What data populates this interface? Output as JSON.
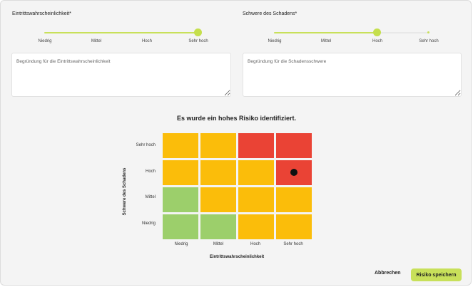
{
  "likelihood": {
    "label": "Eintrittswahrscheinlichkeit*",
    "ticks": [
      "Niedrig",
      "Mittel",
      "Hoch",
      "Sehr hoch"
    ],
    "selected_index": 3,
    "reason_placeholder": "Begründung für die Eintrittswahrscheinlichkeit"
  },
  "severity": {
    "label": "Schwere des Schadens*",
    "ticks": [
      "Niedrig",
      "Mittel",
      "Hoch",
      "Sehr hoch"
    ],
    "selected_index": 2,
    "reason_placeholder": "Begründung für die Schadensschwere"
  },
  "matrix": {
    "result_text": "Es wurde ein hohes Risiko identifiziert.",
    "x_title": "Eintrittswahrscheinlichkeit",
    "y_title": "Schwere des Schadens",
    "x_labels": [
      "Niedrig",
      "Mittel",
      "Hoch",
      "Sehr hoch"
    ],
    "y_labels": [
      "Sehr hoch",
      "Hoch",
      "Mittel",
      "Niedrig"
    ],
    "cell_levels": [
      [
        "medium",
        "medium",
        "high",
        "high"
      ],
      [
        "medium",
        "medium",
        "medium",
        "high"
      ],
      [
        "low",
        "medium",
        "medium",
        "medium"
      ],
      [
        "low",
        "low",
        "medium",
        "medium"
      ]
    ],
    "colors": {
      "low": "#9ccf6b",
      "medium": "#fbbd0a",
      "high": "#ea4335"
    },
    "marker": {
      "row": 1,
      "col": 3
    }
  },
  "actions": {
    "cancel_label": "Abbrechen",
    "save_label": "Risiko speichern"
  },
  "accent_color": "#c8e05a"
}
